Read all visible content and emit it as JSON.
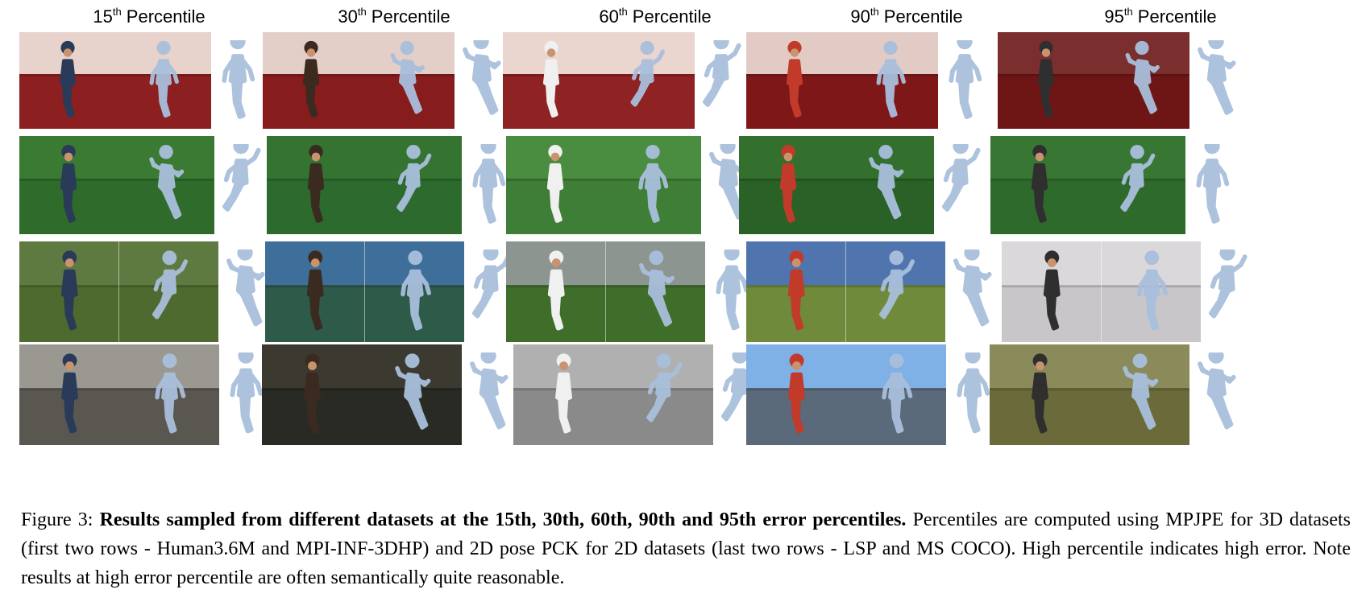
{
  "columns": [
    {
      "num": "15",
      "sup": "th",
      "label": "Percentile"
    },
    {
      "num": "30",
      "sup": "th",
      "label": "Percentile"
    },
    {
      "num": "60",
      "sup": "th",
      "label": "Percentile"
    },
    {
      "num": "90",
      "sup": "th",
      "label": "Percentile"
    },
    {
      "num": "95",
      "sup": "th",
      "label": "Percentile"
    }
  ],
  "rows": [
    {
      "dataset": "Human3.6M",
      "backgrounds": [
        "#8c1f1f",
        "#861c1c",
        "#8f2222",
        "#7e1818",
        "#6e1616"
      ],
      "walls": [
        "#e8d2cc",
        "#e4cfc8",
        "#ead5cf",
        "#e2cbc4",
        "#7a2e2e"
      ]
    },
    {
      "dataset": "MPI-INF-3DHP",
      "backgrounds": [
        "#2f6b2a",
        "#2c6a2e",
        "#3e7e36",
        "#2a6126",
        "#2e6a2b"
      ],
      "walls": [
        "#3a7a32",
        "#347430",
        "#4a8d40",
        "#33702d",
        "#377633"
      ]
    },
    {
      "dataset": "LSP",
      "backgrounds": [
        "#4f6a2e",
        "#2e5a4a",
        "#3f6e2a",
        "#6f8a3a",
        "#c9c6c9"
      ],
      "walls": [
        "#5f7a40",
        "#3e6e9a",
        "#8c9590",
        "#4f74ae",
        "#dad8da"
      ]
    },
    {
      "dataset": "MS COCO",
      "backgrounds": [
        "#5a5750",
        "#2a2a24",
        "#8a8a8a",
        "#5a6a7a",
        "#6b6a3a"
      ],
      "walls": [
        "#9a9890",
        "#3c3a30",
        "#b0b0b0",
        "#7fb0e6",
        "#8a8a5a"
      ]
    }
  ],
  "mesh_color": "#a9bfdc",
  "caption": {
    "prefix": "Figure 3: ",
    "bold": "Results sampled from different datasets at the 15th, 30th, 60th, 90th and 95th error percentiles.",
    "rest": " Percentiles are computed using MPJPE for 3D datasets (first two rows - Human3.6M and MPI-INF-3DHP) and 2D pose PCK for 2D datasets (last two rows - LSP and MS COCO). High percentile indicates high error. Note results at high error percentile are often semantically quite reasonable."
  }
}
